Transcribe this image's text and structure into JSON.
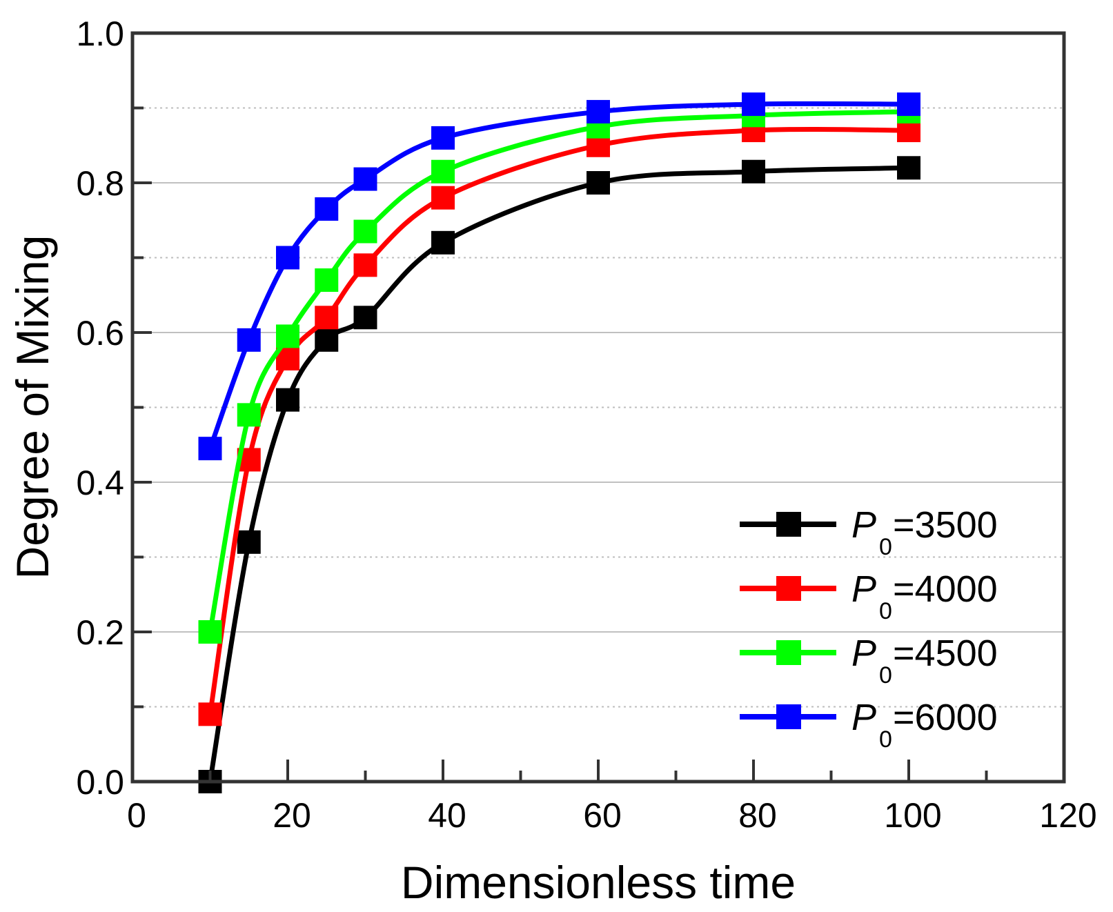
{
  "chart_data": {
    "type": "line",
    "title": "",
    "xlabel": "Dimensionless time",
    "ylabel": "Degree of Mixing",
    "xlim": [
      0,
      120
    ],
    "ylim": [
      0.0,
      1.0
    ],
    "xticks": [
      "0",
      "20",
      "40",
      "60",
      "80",
      "100",
      "120"
    ],
    "yticks": [
      "0.0",
      "0.2",
      "0.4",
      "0.6",
      "0.8",
      "1.0"
    ],
    "x": [
      10,
      15,
      20,
      25,
      30,
      40,
      60,
      80,
      100
    ],
    "grid": "horizontal",
    "legend_position": "bottom-right",
    "series": [
      {
        "name": "P0=3500",
        "label_main": "P",
        "label_sub": "0",
        "label_tail": "=3500",
        "color": "#000000",
        "values": [
          0.0,
          0.32,
          0.51,
          0.59,
          0.62,
          0.72,
          0.8,
          0.815,
          0.82
        ]
      },
      {
        "name": "P0=4000",
        "label_main": "P",
        "label_sub": "0",
        "label_tail": "=4000",
        "color": "#ff0000",
        "values": [
          0.09,
          0.43,
          0.565,
          0.62,
          0.69,
          0.78,
          0.85,
          0.87,
          0.87
        ]
      },
      {
        "name": "P0=4500",
        "label_main": "P",
        "label_sub": "0",
        "label_tail": "=4500",
        "color": "#00ff00",
        "values": [
          0.2,
          0.49,
          0.595,
          0.67,
          0.735,
          0.815,
          0.875,
          0.89,
          0.895
        ]
      },
      {
        "name": "P0=6000",
        "label_main": "P",
        "label_sub": "0",
        "label_tail": "=6000",
        "color": "#0000ff",
        "values": [
          0.445,
          0.59,
          0.7,
          0.765,
          0.805,
          0.86,
          0.895,
          0.905,
          0.905
        ]
      }
    ]
  }
}
